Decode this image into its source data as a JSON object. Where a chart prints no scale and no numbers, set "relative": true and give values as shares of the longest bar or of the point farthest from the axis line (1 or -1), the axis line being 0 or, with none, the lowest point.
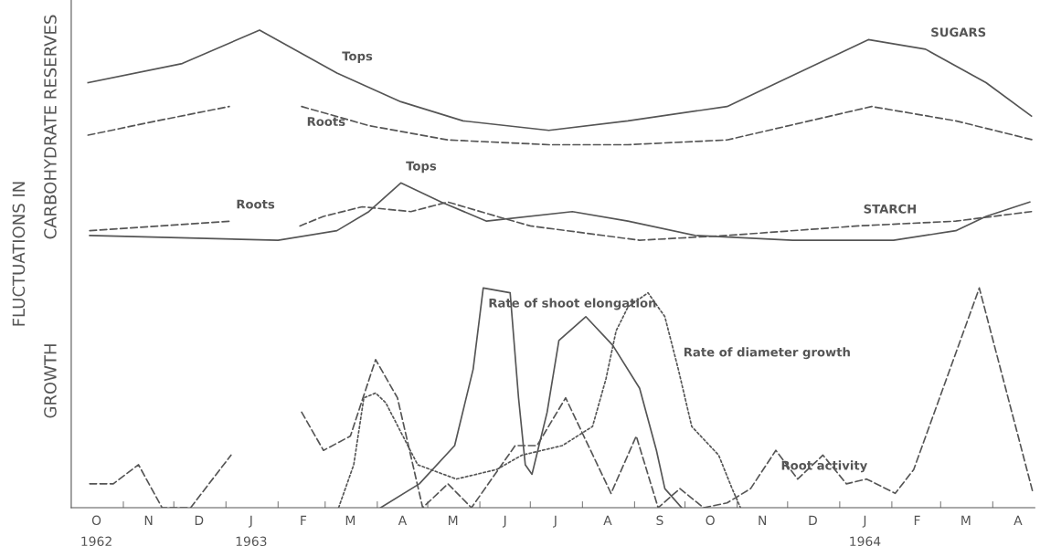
{
  "chart_data": {
    "type": "line",
    "relative": true,
    "xlim": [
      "1962-10-01",
      "1964-04-26"
    ],
    "ylabel": "FLUCTUATIONS IN",
    "xticks": [
      {
        "value": "1962-10-16",
        "label": "O\n1962"
      },
      {
        "value": "1962-11-16",
        "label": "N"
      },
      {
        "value": "1962-12-16",
        "label": "D"
      },
      {
        "value": "1963-01-16",
        "label": "J\n1963"
      },
      {
        "value": "1963-02-16",
        "label": "F"
      },
      {
        "value": "1963-03-16",
        "label": "M"
      },
      {
        "value": "1963-04-16",
        "label": "A"
      },
      {
        "value": "1963-05-16",
        "label": "M"
      },
      {
        "value": "1963-06-16",
        "label": "J"
      },
      {
        "value": "1963-07-16",
        "label": "J"
      },
      {
        "value": "1963-08-16",
        "label": "A"
      },
      {
        "value": "1963-09-16",
        "label": "S"
      },
      {
        "value": "1963-10-16",
        "label": "O"
      },
      {
        "value": "1963-11-16",
        "label": "N"
      },
      {
        "value": "1963-12-16",
        "label": "D"
      },
      {
        "value": "1964-01-16",
        "label": "J\n1964"
      },
      {
        "value": "1964-02-16",
        "label": "F"
      },
      {
        "value": "1964-03-16",
        "label": "M"
      },
      {
        "value": "1964-04-16",
        "label": "A"
      },
      {
        "value": "1962-11-01",
        "label": null
      },
      {
        "value": "1962-12-01",
        "label": null
      },
      {
        "value": "1963-01-01",
        "label": null
      },
      {
        "value": "1963-02-01",
        "label": null
      },
      {
        "value": "1963-03-01",
        "label": null
      },
      {
        "value": "1963-04-01",
        "label": null
      },
      {
        "value": "1963-05-01",
        "label": null
      },
      {
        "value": "1963-06-01",
        "label": null
      },
      {
        "value": "1963-07-01",
        "label": null
      },
      {
        "value": "1963-08-01",
        "label": null
      },
      {
        "value": "1963-09-01",
        "label": null
      },
      {
        "value": "1963-10-01",
        "label": null
      },
      {
        "value": "1963-11-01",
        "label": null
      },
      {
        "value": "1963-12-01",
        "label": null
      },
      {
        "value": "1964-01-01",
        "label": null
      },
      {
        "value": "1964-02-01",
        "label": null
      },
      {
        "value": "1964-03-01",
        "label": null
      },
      {
        "value": "1964-04-01",
        "label": null
      }
    ],
    "annotations": [
      "CARBOHYDRATE RESERVES",
      "GROWTH",
      {
        "text": "SUGARS",
        "x": "1964-02-21",
        "y": 0.96
      },
      {
        "text": "Tops",
        "x": "1963-03-08",
        "y": 0.91
      },
      {
        "text": "Roots",
        "x": "1963-02-15",
        "y": 0.84
      },
      {
        "text": "Tops",
        "x": "1963-04-15",
        "y": 0.68
      },
      {
        "text": "Roots",
        "x": "1963-01-04",
        "y": 0.6
      },
      {
        "text": "STARCH",
        "x": "1964-01-12",
        "y": 0.59
      },
      {
        "text": "Rate of shoot elongation",
        "x": "1963-06-03",
        "y": 0.46
      },
      {
        "text": "Rate of diameter growth",
        "x": "1963-09-27",
        "y": 0.29
      },
      {
        "text": "Root activity",
        "x": "1963-11-24",
        "y": 0.12
      }
    ],
    "series": [
      {
        "color": "#555555",
        "line_style": "solid",
        "x": [
          "1962-10-11",
          "1962-12-06",
          "1963-01-21",
          "1963-03-08",
          "1963-04-15",
          "1963-05-22",
          "1963-07-12",
          "1963-08-28",
          "1963-10-26",
          "1963-11-25",
          "1964-01-18",
          "1964-02-21",
          "1964-03-28",
          "1964-04-24"
        ],
        "values": [
          0.89,
          0.93,
          1.0,
          0.91,
          0.85,
          0.81,
          0.79,
          0.81,
          0.84,
          0.89,
          0.98,
          0.96,
          0.89,
          0.82
        ]
      },
      {
        "color": "#555555",
        "line_style": "dashed",
        "x": [
          "1962-10-11",
          "1962-11-21",
          "1963-01-03",
          "1963-01-22",
          "1963-02-15",
          "1963-03-27",
          "1963-05-13",
          "1963-07-12",
          "1963-08-28",
          "1963-10-26",
          "1964-01-20",
          "1964-03-10",
          "1964-04-25"
        ],
        "values": [
          0.78,
          0.81,
          0.84,
          null,
          0.84,
          0.8,
          0.77,
          0.76,
          0.76,
          0.77,
          0.84,
          0.81,
          0.77
        ]
      },
      {
        "color": "#555555",
        "line_style": "solid",
        "x": [
          "1962-10-12",
          "1963-02-01",
          "1963-03-08",
          "1963-03-27",
          "1963-04-15",
          "1963-05-09",
          "1963-06-05",
          "1963-07-26",
          "1963-08-28",
          "1963-10-07",
          "1963-12-04",
          "1964-02-02",
          "1964-03-10",
          "1964-03-28",
          "1964-04-23"
        ],
        "values": [
          0.57,
          0.56,
          0.58,
          0.62,
          0.68,
          0.64,
          0.6,
          0.62,
          0.6,
          0.57,
          0.56,
          0.56,
          0.58,
          0.61,
          0.64
        ]
      },
      {
        "color": "#555555",
        "line_style": "dashed",
        "x": [
          "1962-10-12",
          "1963-01-04",
          "1963-01-22",
          "1963-02-14",
          "1963-02-28",
          "1963-03-23",
          "1963-04-21",
          "1963-05-13",
          "1963-06-11",
          "1963-07-01",
          "1963-09-04",
          "1963-10-26",
          "1964-01-12",
          "1964-03-10",
          "1964-04-24"
        ],
        "values": [
          0.58,
          0.6,
          null,
          0.59,
          0.61,
          0.63,
          0.62,
          0.64,
          0.61,
          0.59,
          0.56,
          0.57,
          0.59,
          0.6,
          0.62
        ]
      },
      {
        "color": "#555555",
        "line_style": "solid",
        "x": [
          "1963-04-03",
          "1963-04-26",
          "1963-05-17",
          "1963-05-28",
          "1963-06-03",
          "1963-06-19",
          "1963-06-24",
          "1963-06-28",
          "1963-07-02",
          "1963-07-11",
          "1963-07-18",
          "1963-08-03",
          "1963-08-19",
          "1963-09-04",
          "1963-09-14",
          "1963-09-19",
          "1963-09-29"
        ],
        "values": [
          0.0,
          0.05,
          0.13,
          0.29,
          0.46,
          0.45,
          0.23,
          0.09,
          0.07,
          0.2,
          0.35,
          0.4,
          0.34,
          0.25,
          0.12,
          0.04,
          0.0
        ]
      },
      {
        "color": "#555555",
        "line_style": "dotted",
        "x": [
          "1963-03-09",
          "1963-03-18",
          "1963-03-24",
          "1963-03-31",
          "1963-04-06",
          "1963-04-25",
          "1963-05-18",
          "1963-06-11",
          "1963-06-26",
          "1963-07-20",
          "1963-08-07",
          "1963-08-15",
          "1963-08-21",
          "1963-08-28",
          "1963-09-09",
          "1963-09-19",
          "1963-09-27",
          "1963-10-05",
          "1963-10-21",
          "1963-10-29",
          "1963-11-03"
        ],
        "values": [
          0.0,
          0.09,
          0.23,
          0.24,
          0.22,
          0.09,
          0.06,
          0.08,
          0.11,
          0.13,
          0.17,
          0.27,
          0.37,
          0.42,
          0.45,
          0.4,
          0.29,
          0.17,
          0.11,
          0.04,
          0.0
        ]
      },
      {
        "color": "#555555",
        "line_style": "dashed",
        "x": [
          "1962-10-12",
          "1962-10-26",
          "1962-11-10",
          "1962-11-24",
          "1962-12-11",
          "1963-01-04",
          "1963-01-22",
          "1963-02-15",
          "1963-02-28",
          "1963-03-16",
          "1963-03-31",
          "1963-04-13",
          "1963-04-28",
          "1963-05-13",
          "1963-05-27",
          "1963-06-22",
          "1963-07-05",
          "1963-07-22",
          "1963-08-18",
          "1963-09-02",
          "1963-09-15",
          "1963-09-28",
          "1963-10-12",
          "1963-10-26",
          "1963-11-09",
          "1963-11-24",
          "1963-12-07",
          "1963-12-22",
          "1964-01-05",
          "1964-01-17",
          "1964-02-03",
          "1964-02-14",
          "1964-03-24",
          "1964-04-25"
        ],
        "values": [
          0.05,
          0.05,
          0.09,
          0.0,
          0.0,
          0.11,
          null,
          0.2,
          0.12,
          0.15,
          0.31,
          0.23,
          0.0,
          0.05,
          0.0,
          0.13,
          0.13,
          0.23,
          0.03,
          0.15,
          0.0,
          0.04,
          0.0,
          0.01,
          0.04,
          0.12,
          0.06,
          0.11,
          0.05,
          0.06,
          0.03,
          0.08,
          0.46,
          0.03
        ]
      }
    ]
  }
}
